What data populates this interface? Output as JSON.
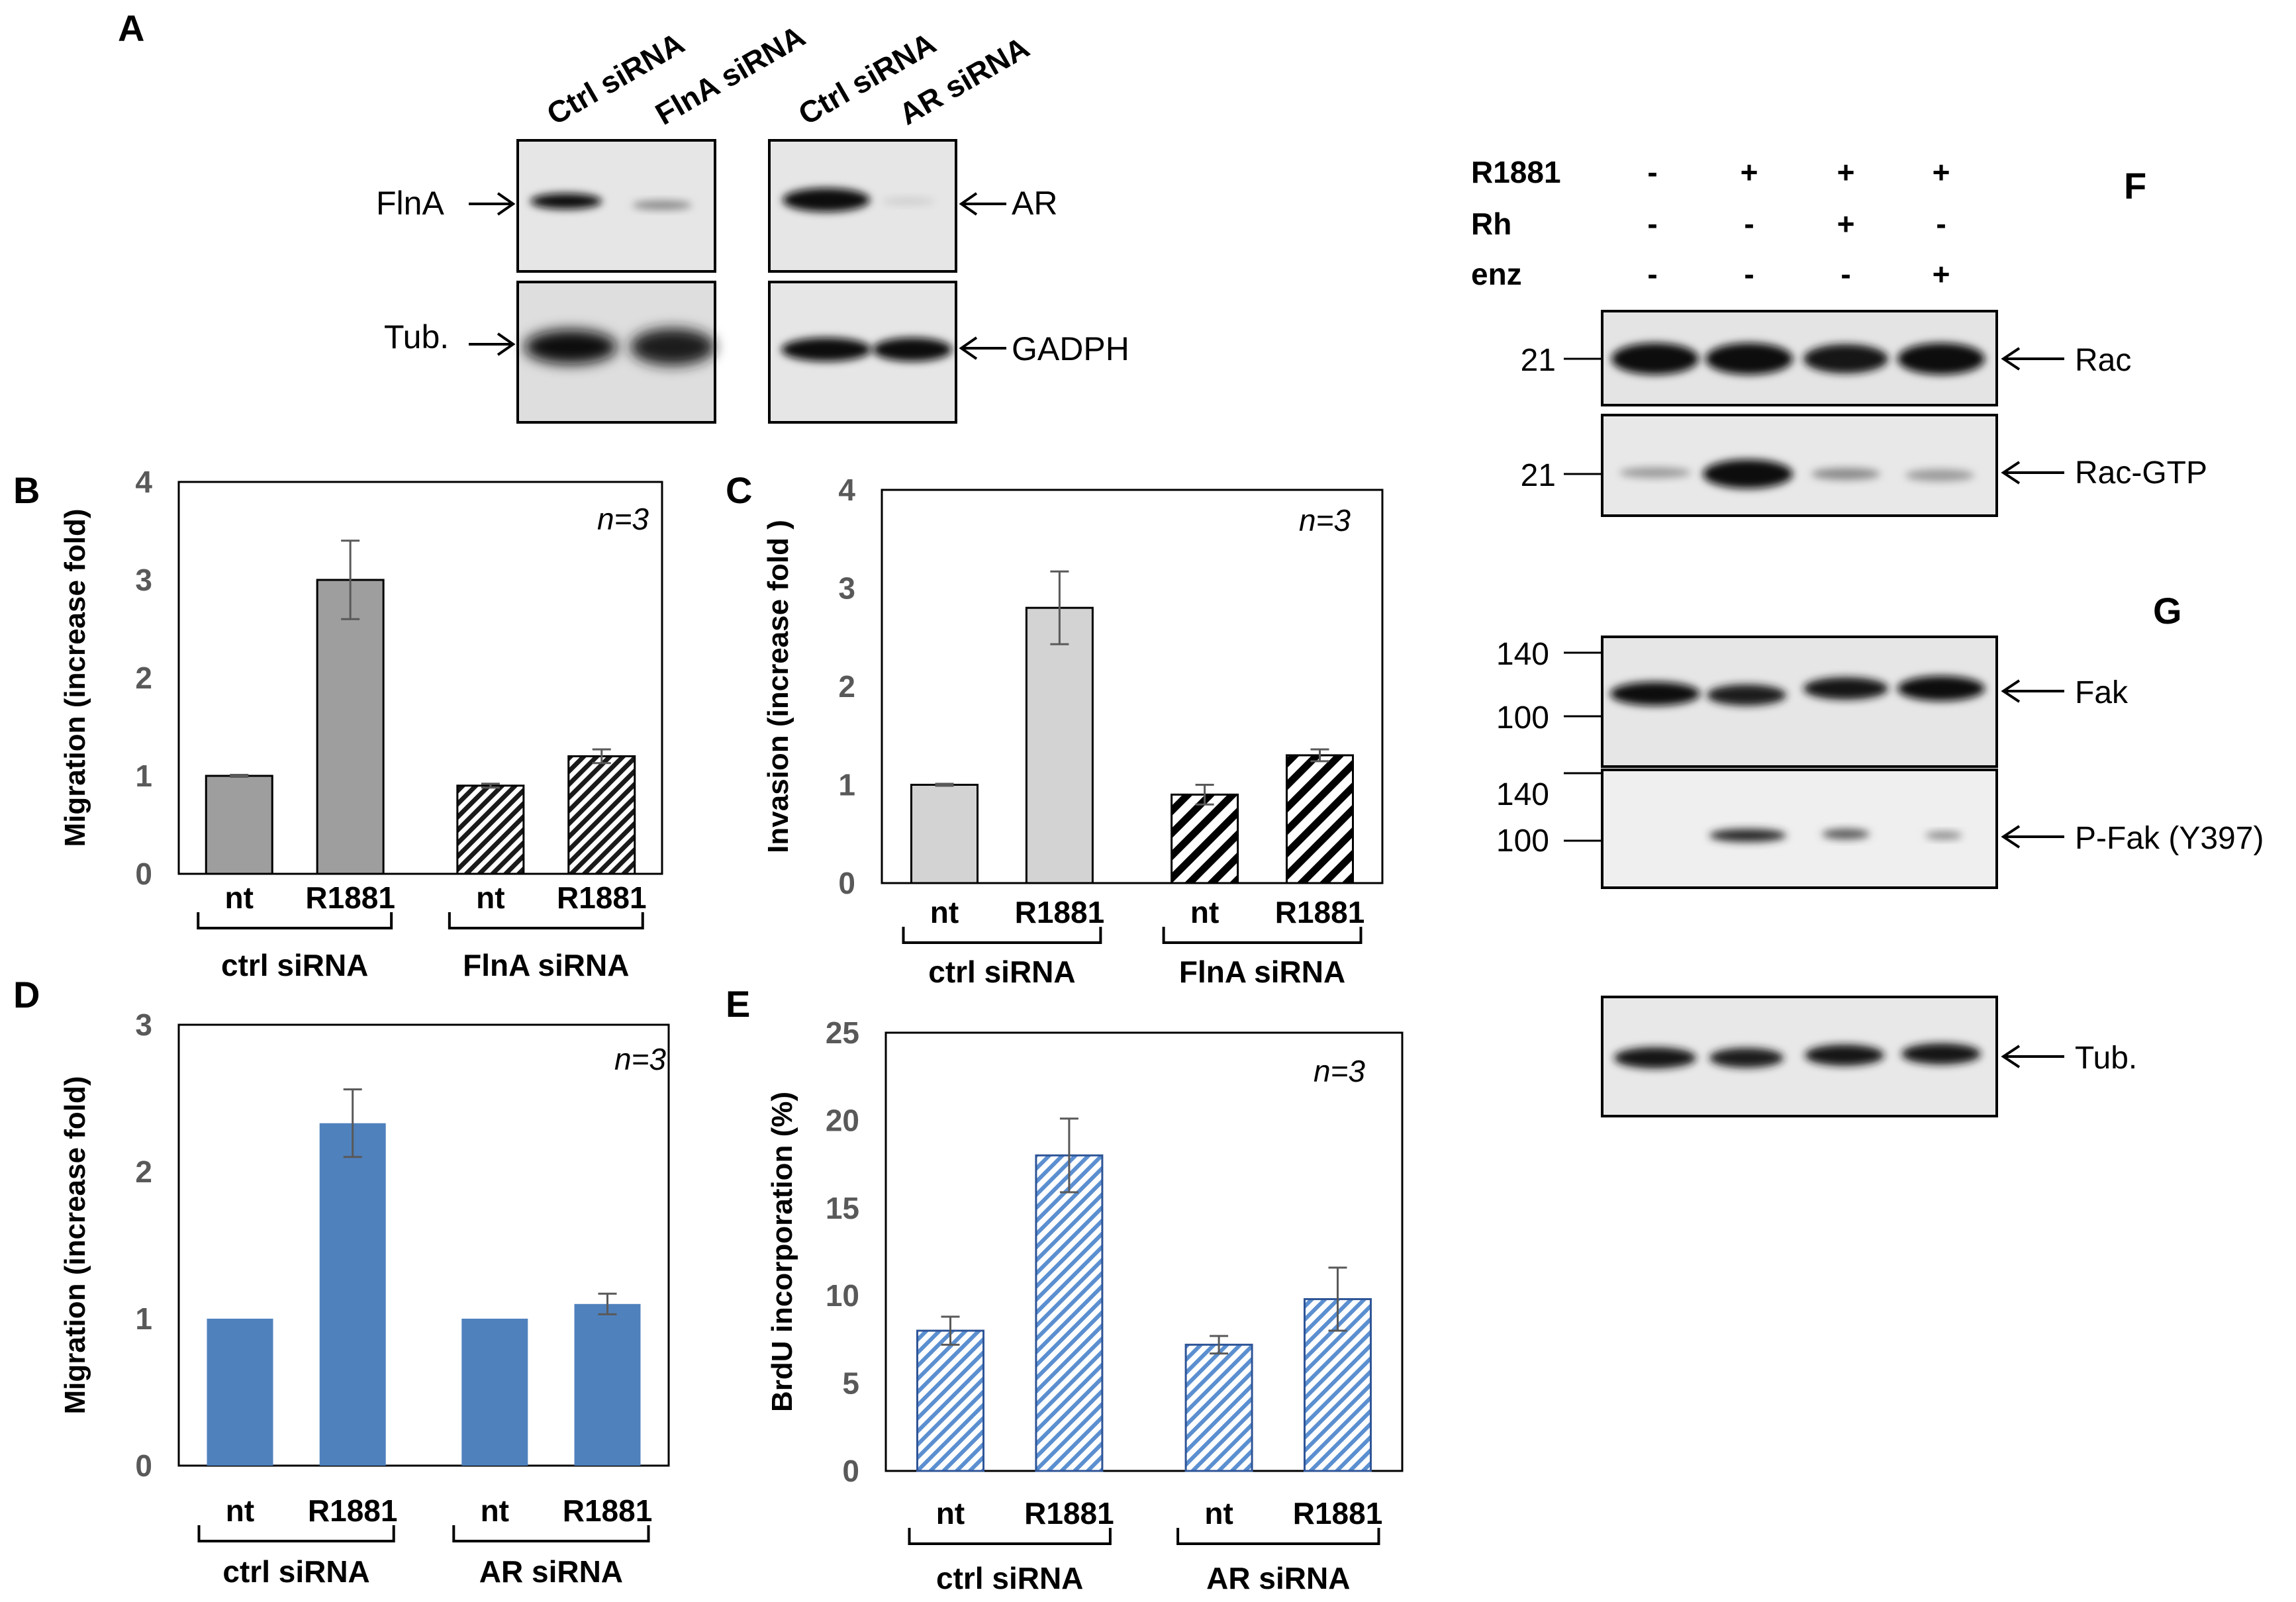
{
  "panel_letters": {
    "A": "A",
    "B": "B",
    "C": "C",
    "D": "D",
    "E": "E",
    "F": "F",
    "G": "G"
  },
  "blots_A": {
    "left_lanes": [
      "Ctrl siRNA",
      "FlnA siRNA"
    ],
    "right_lanes": [
      "Ctrl siRNA",
      "AR siRNA"
    ],
    "left_labels": [
      "FlnA",
      "Tub."
    ],
    "right_labels": [
      "AR",
      "GADPH"
    ]
  },
  "blots_FG": {
    "treatments": [
      {
        "name": "R1881",
        "marks": [
          "-",
          "+",
          "+",
          "+"
        ]
      },
      {
        "name": "Rh",
        "marks": [
          "-",
          "-",
          "+",
          "-"
        ]
      },
      {
        "name": "enz",
        "marks": [
          "-",
          "-",
          "-",
          "+"
        ]
      }
    ],
    "bands": [
      "Rac",
      "Rac-GTP",
      "Fak",
      "P-Fak (Y397)",
      "Tub."
    ],
    "markers": [
      "21",
      "21",
      "140",
      "100",
      "140",
      "100"
    ]
  },
  "colors": {
    "gray_bar": "#9e9e9e",
    "light_gray_bar": "#d3d3d3",
    "blue_bar": "#4f81bd",
    "blue_hatch": "#5b8fd0",
    "axis_text": "#595959"
  },
  "chart_data": [
    {
      "panel": "B",
      "type": "bar",
      "categories": [
        "nt",
        "R1881",
        "nt",
        "R1881"
      ],
      "groups": [
        "ctrl siRNA",
        "FlnA siRNA"
      ],
      "values": [
        1.0,
        3.0,
        0.9,
        1.2
      ],
      "errors": [
        0.01,
        0.4,
        0.02,
        0.07
      ],
      "ylabel": "Migration (increase fold)",
      "ylim": [
        0,
        4
      ],
      "yticks": [
        "0",
        "1",
        "2",
        "3",
        "4"
      ],
      "annotation": "n=3"
    },
    {
      "panel": "C",
      "type": "bar",
      "categories": [
        "nt",
        "R1881",
        "nt",
        "R1881"
      ],
      "groups": [
        "ctrl siRNA",
        "FlnA siRNA"
      ],
      "values": [
        1.0,
        2.8,
        0.9,
        1.3
      ],
      "errors": [
        0.01,
        0.37,
        0.1,
        0.06
      ],
      "ylabel": "Invasion (increase fold )",
      "ylim": [
        0,
        4
      ],
      "yticks": [
        "0",
        "1",
        "2",
        "3",
        "4"
      ],
      "annotation": "n=3"
    },
    {
      "panel": "D",
      "type": "bar",
      "categories": [
        "nt",
        "R1881",
        "nt",
        "R1881"
      ],
      "groups": [
        "ctrl siRNA",
        "AR siRNA"
      ],
      "values": [
        1.0,
        2.33,
        1.0,
        1.1
      ],
      "errors": [
        0.0,
        0.23,
        0.0,
        0.07
      ],
      "ylabel": "Migration (increase fold)",
      "ylim": [
        0,
        3
      ],
      "yticks": [
        "0",
        "1",
        "2",
        "3"
      ],
      "annotation": "n=3"
    },
    {
      "panel": "E",
      "type": "bar",
      "categories": [
        "nt",
        "R1881",
        "nt",
        "R1881"
      ],
      "groups": [
        "ctrl siRNA",
        "AR siRNA"
      ],
      "values": [
        8.0,
        18.0,
        7.2,
        9.8
      ],
      "errors": [
        0.8,
        2.1,
        0.5,
        1.8
      ],
      "ylabel": "BrdU incorporation (%)",
      "ylim": [
        0,
        25
      ],
      "yticks": [
        "0",
        "5",
        "10",
        "15",
        "20",
        "25"
      ],
      "annotation": "n=3"
    }
  ]
}
